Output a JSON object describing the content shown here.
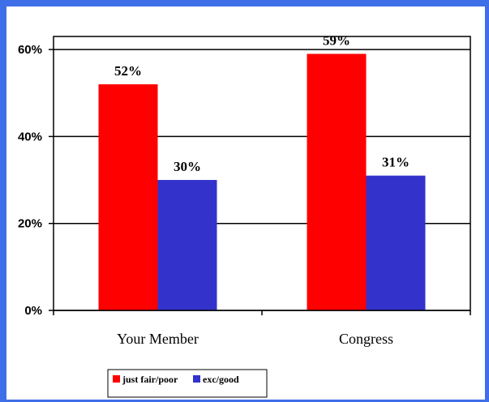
{
  "chart_data": {
    "type": "bar",
    "categories": [
      "Your Member",
      "Congress"
    ],
    "series": [
      {
        "name": "just fair/poor",
        "values": [
          52,
          59
        ],
        "labels": [
          "52%",
          "59%"
        ],
        "color": "#ff0000"
      },
      {
        "name": "exc/good",
        "values": [
          30,
          31
        ],
        "labels": [
          "30%",
          "31%"
        ],
        "color": "#3333cc"
      }
    ],
    "ylim": [
      0,
      60
    ],
    "yticks": [
      0,
      20,
      40,
      60
    ],
    "ytick_labels": [
      "0%",
      "20%",
      "40%",
      "60%"
    ],
    "grid": true,
    "legend_position": "bottom-center",
    "title": "",
    "xlabel": "",
    "ylabel": ""
  }
}
